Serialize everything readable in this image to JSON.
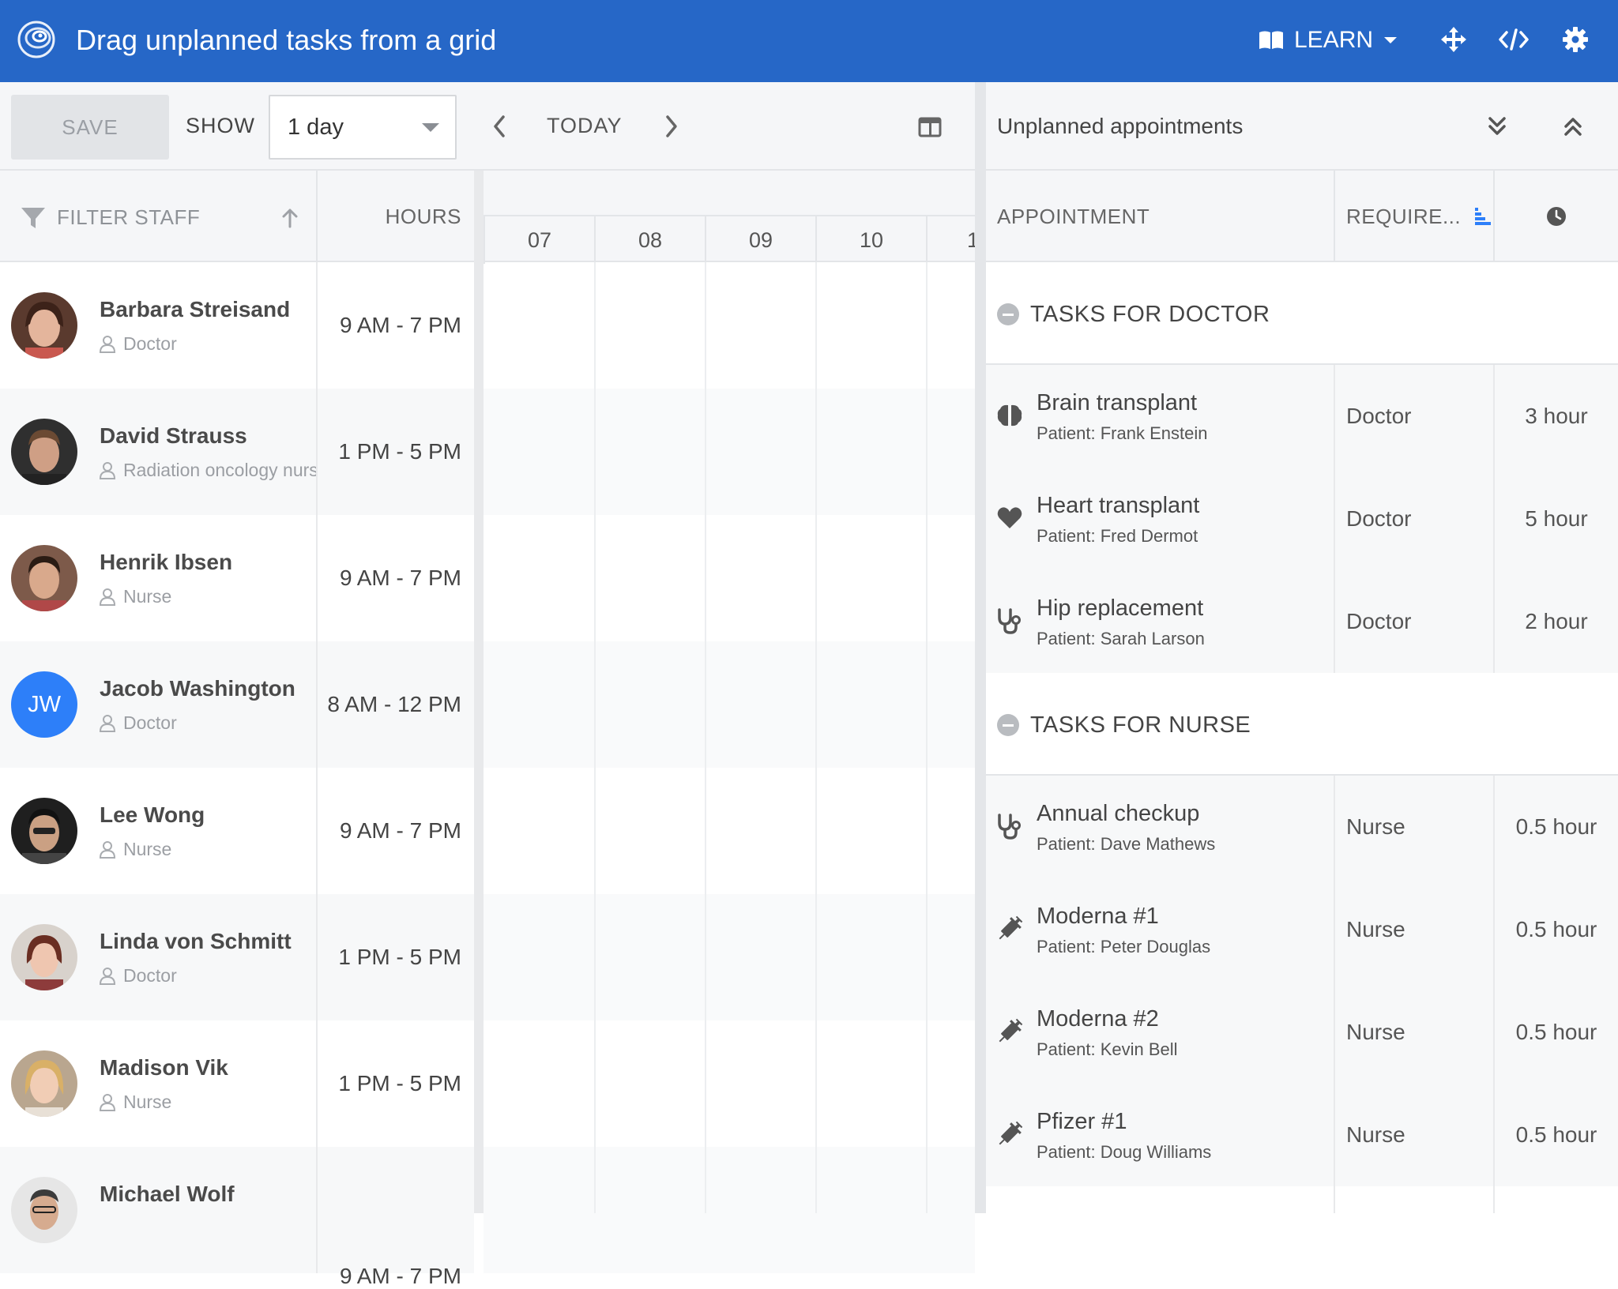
{
  "header": {
    "title": "Drag unplanned tasks from a grid",
    "learn_label": "LEARN",
    "icons": [
      "move-icon",
      "code-icon",
      "gear-icon"
    ],
    "bg_color": "#2667c7"
  },
  "toolbar": {
    "save_label": "SAVE",
    "show_label": "SHOW",
    "range_value": "1 day",
    "today_label": "TODAY"
  },
  "staff_grid": {
    "filter_label": "FILTER STAFF",
    "hours_label": "HOURS",
    "hour_ticks": [
      "07",
      "08",
      "09",
      "10",
      "1"
    ],
    "rows": [
      {
        "name": "Barbara Streisand",
        "role": "Doctor",
        "hours": "9 AM - 7 PM",
        "avatar": "photo"
      },
      {
        "name": "David Strauss",
        "role": "Radiation oncology nurse",
        "hours": "1 PM - 5 PM",
        "avatar": "photo"
      },
      {
        "name": "Henrik Ibsen",
        "role": "Nurse",
        "hours": "9 AM - 7 PM",
        "avatar": "photo"
      },
      {
        "name": "Jacob Washington",
        "role": "Doctor",
        "hours": "8 AM - 12 PM",
        "avatar": "initials",
        "initials": "JW"
      },
      {
        "name": "Lee Wong",
        "role": "Nurse",
        "hours": "9 AM - 7 PM",
        "avatar": "photo"
      },
      {
        "name": "Linda von Schmitt",
        "role": "Doctor",
        "hours": "1 PM - 5 PM",
        "avatar": "photo"
      },
      {
        "name": "Madison Vik",
        "role": "Nurse",
        "hours": "1 PM - 5 PM",
        "avatar": "photo"
      },
      {
        "name": "Michael Wolf",
        "role": "",
        "hours": "9 AM - 7 PM",
        "avatar": "photo"
      }
    ]
  },
  "unplanned": {
    "title": "Unplanned appointments",
    "col_appointment": "APPOINTMENT",
    "col_required": "REQUIRE...",
    "groups": [
      {
        "label": "TASKS FOR DOCTOR",
        "tasks": [
          {
            "name": "Brain transplant",
            "patient": "Patient: Frank Enstein",
            "required": "Doctor",
            "duration": "3 hour",
            "icon": "brain-icon"
          },
          {
            "name": "Heart transplant",
            "patient": "Patient: Fred Dermot",
            "required": "Doctor",
            "duration": "5 hour",
            "icon": "heart-icon"
          },
          {
            "name": "Hip replacement",
            "patient": "Patient: Sarah Larson",
            "required": "Doctor",
            "duration": "2 hour",
            "icon": "stethoscope-icon"
          }
        ]
      },
      {
        "label": "TASKS FOR NURSE",
        "tasks": [
          {
            "name": "Annual checkup",
            "patient": "Patient: Dave Mathews",
            "required": "Nurse",
            "duration": "0.5 hour",
            "icon": "stethoscope-icon"
          },
          {
            "name": "Moderna #1",
            "patient": "Patient: Peter Douglas",
            "required": "Nurse",
            "duration": "0.5 hour",
            "icon": "syringe-icon"
          },
          {
            "name": "Moderna #2",
            "patient": "Patient: Kevin Bell",
            "required": "Nurse",
            "duration": "0.5 hour",
            "icon": "syringe-icon"
          },
          {
            "name": "Pfizer #1",
            "patient": "Patient: Doug Williams",
            "required": "Nurse",
            "duration": "0.5 hour",
            "icon": "syringe-icon"
          }
        ]
      }
    ]
  }
}
